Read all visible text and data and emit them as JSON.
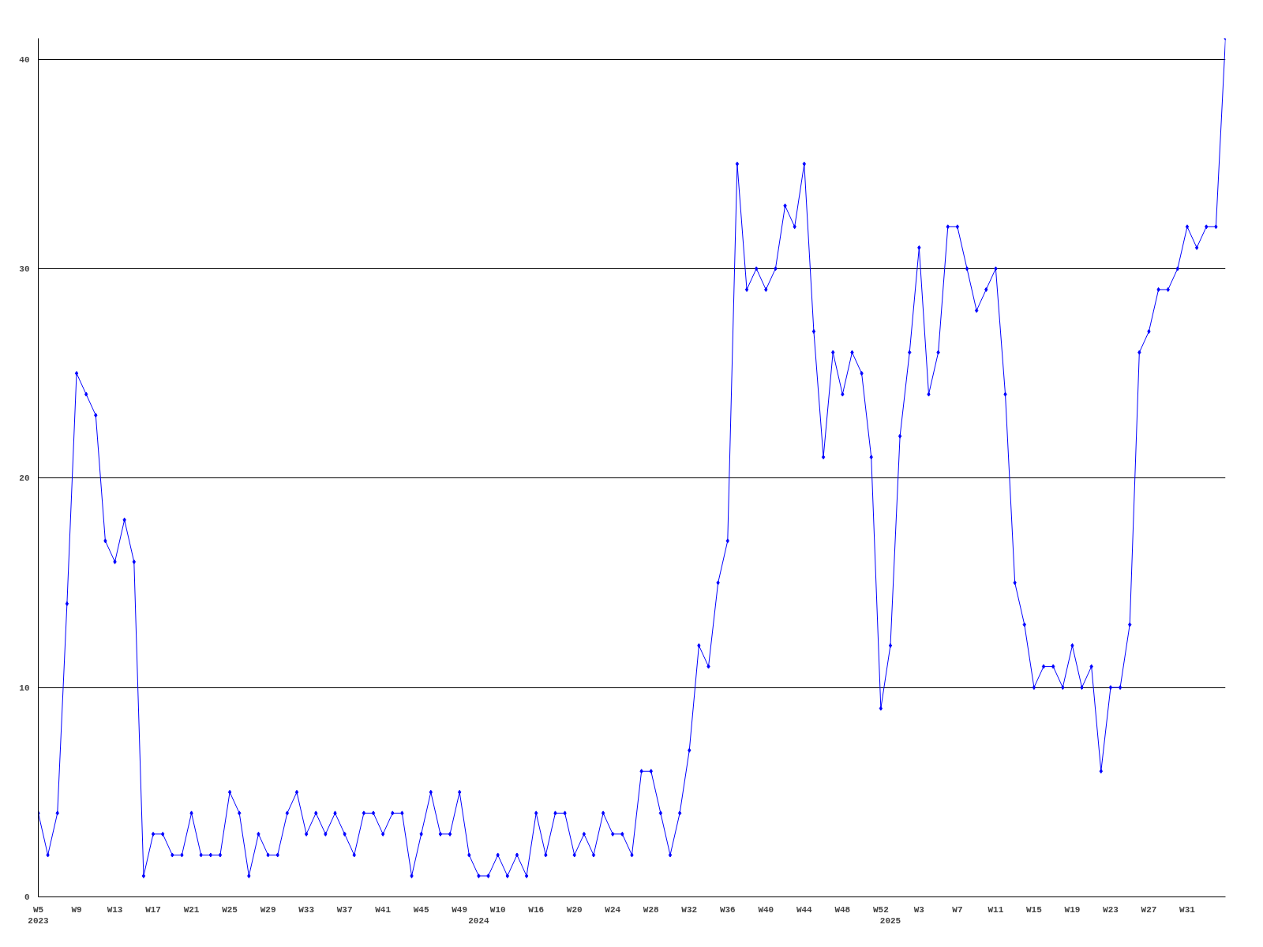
{
  "chart_data": {
    "type": "line",
    "categories": [
      "W5\n2023",
      null,
      null,
      null,
      "W9",
      null,
      null,
      null,
      "W13",
      null,
      null,
      null,
      "W17",
      null,
      null,
      null,
      "W21",
      null,
      null,
      null,
      "W25",
      null,
      null,
      null,
      "W29",
      null,
      null,
      null,
      "W33",
      null,
      null,
      null,
      "W37",
      null,
      null,
      null,
      "W41",
      null,
      null,
      null,
      "W45",
      null,
      null,
      null,
      "W49",
      null,
      "\n2024",
      null,
      "W10",
      null,
      null,
      null,
      "W16",
      null,
      null,
      null,
      "W20",
      null,
      null,
      null,
      "W24",
      null,
      null,
      null,
      "W28",
      null,
      null,
      null,
      "W32",
      null,
      null,
      null,
      "W36",
      null,
      null,
      null,
      "W40",
      null,
      null,
      null,
      "W44",
      null,
      null,
      null,
      "W48",
      null,
      null,
      null,
      "W52",
      "\n2025",
      null,
      null,
      "W3",
      null,
      null,
      null,
      "W7",
      null,
      null,
      null,
      "W11",
      null,
      null,
      null,
      "W15",
      null,
      null,
      null,
      "W19",
      null,
      null,
      null,
      "W23",
      null,
      null,
      null,
      "W27",
      null,
      null,
      null,
      "W31",
      null,
      null,
      null,
      null
    ],
    "series": [
      {
        "color": "#0000ff",
        "values": [
          4,
          2,
          4,
          14,
          25,
          24,
          23,
          17,
          16,
          18,
          16,
          1,
          3,
          3,
          2,
          2,
          4,
          2,
          2,
          2,
          5,
          4,
          1,
          3,
          2,
          2,
          4,
          5,
          3,
          4,
          3,
          4,
          3,
          2,
          4,
          4,
          3,
          4,
          4,
          1,
          3,
          5,
          3,
          3,
          5,
          2,
          1,
          1,
          2,
          1,
          2,
          1,
          4,
          2,
          4,
          4,
          2,
          3,
          2,
          4,
          3,
          3,
          2,
          6,
          6,
          4,
          2,
          4,
          7,
          12,
          11,
          15,
          17,
          35,
          29,
          30,
          29,
          30,
          33,
          32,
          35,
          27,
          21,
          26,
          24,
          26,
          25,
          21,
          9,
          12,
          22,
          26,
          31,
          24,
          26,
          32,
          32,
          30,
          28,
          29,
          30,
          24,
          15,
          13,
          10,
          11,
          11,
          10,
          12,
          10,
          11,
          6,
          10,
          10,
          13,
          26,
          27,
          29,
          29,
          30,
          32,
          31,
          32,
          32,
          41
        ]
      }
    ],
    "ylim": [
      0,
      41
    ],
    "yticks": [
      0,
      10,
      20,
      30,
      40
    ],
    "grid": "y",
    "marker": "diamond",
    "line_style": "solid"
  }
}
